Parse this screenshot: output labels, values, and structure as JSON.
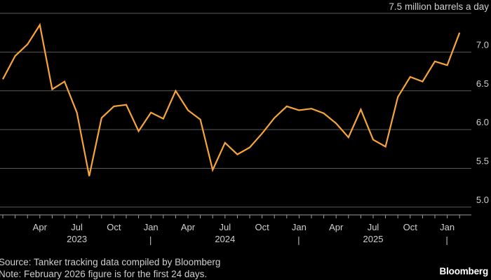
{
  "chart_data": {
    "type": "line",
    "unit_label": "7.5 million barrels a day",
    "ylim": [
      4.9,
      7.5
    ],
    "yticks": [
      7.0,
      6.5,
      6.0,
      5.5,
      5.0
    ],
    "ytick_labels": [
      "7.0",
      "6.5",
      "6.0",
      "5.5",
      "5.0"
    ],
    "grid": true,
    "line_color": "#f7a43a",
    "x": [
      "2023-01",
      "2023-02",
      "2023-03",
      "2023-04",
      "2023-05",
      "2023-06",
      "2023-07",
      "2023-08",
      "2023-09",
      "2023-10",
      "2023-11",
      "2023-12",
      "2024-01",
      "2024-02",
      "2024-03",
      "2024-04",
      "2024-05",
      "2024-06",
      "2024-07",
      "2024-08",
      "2024-09",
      "2024-10",
      "2024-11",
      "2024-12",
      "2025-01",
      "2025-02",
      "2025-03",
      "2025-04",
      "2025-05",
      "2025-06",
      "2025-07",
      "2025-08",
      "2025-09",
      "2025-10",
      "2025-11",
      "2025-12",
      "2026-01",
      "2026-02"
    ],
    "series": [
      {
        "values": [
          6.65,
          6.95,
          7.1,
          7.35,
          6.52,
          6.62,
          6.22,
          5.4,
          6.15,
          6.3,
          6.32,
          5.98,
          6.22,
          6.14,
          6.5,
          6.25,
          6.13,
          5.48,
          5.83,
          5.68,
          5.77,
          5.95,
          6.15,
          6.3,
          6.25,
          6.27,
          6.21,
          6.08,
          5.9,
          6.26,
          5.87,
          5.78,
          6.42,
          6.68,
          6.62,
          6.88,
          6.83,
          7.25
        ]
      }
    ],
    "xtick_labels": [
      "Apr",
      "Jul",
      "Oct",
      "Jan",
      "Apr",
      "Jul",
      "Oct",
      "Jan",
      "Apr",
      "Jul",
      "Oct",
      "Jan"
    ],
    "xtick_months": [
      "2023-04",
      "2023-07",
      "2023-10",
      "2024-01",
      "2024-04",
      "2024-07",
      "2024-10",
      "2025-01",
      "2025-04",
      "2025-07",
      "2025-10",
      "2026-01"
    ],
    "year_labels": [
      {
        "label": "2023",
        "month": "2023-07"
      },
      {
        "label": "2024",
        "month": "2024-07"
      },
      {
        "label": "2025",
        "month": "2025-07"
      }
    ],
    "year_dividers": [
      "2024-01",
      "2025-01",
      "2026-01"
    ]
  },
  "footer": {
    "source": "Source: Tanker tracking data compiled by Bloomberg",
    "note": "Note: February 2026 figure is for the first 24 days.",
    "brand": "Bloomberg"
  }
}
